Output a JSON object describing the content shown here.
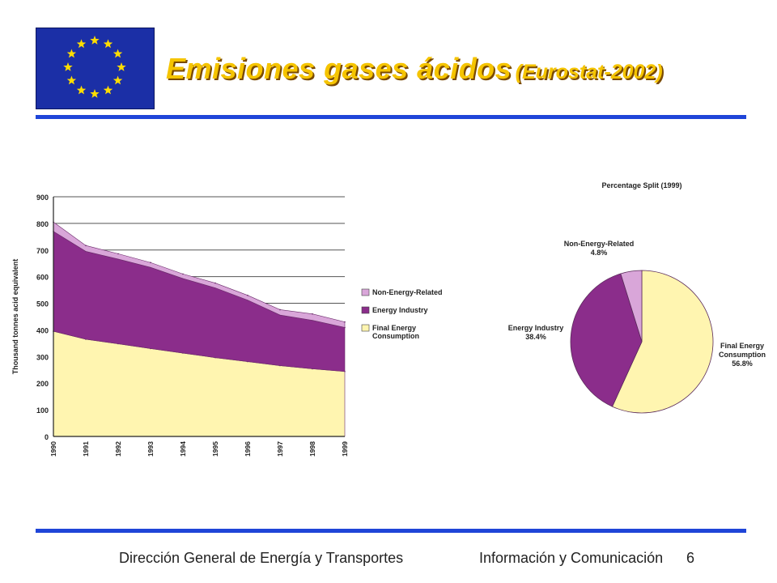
{
  "header": {
    "title_main": "Emisiones gases ácidos",
    "title_sub": "(Eurostat-2002)",
    "flag_icon": "eu-flag-icon",
    "flag_color": "#1b2fa6",
    "star_color": "#ffdd00"
  },
  "footer": {
    "left": "Dirección General de Energía y Transportes",
    "right": "Información y Comunicación",
    "page": "6"
  },
  "chart_data": [
    {
      "type": "area",
      "stacked": true,
      "x": [
        "1990",
        "1991",
        "1992",
        "1993",
        "1994",
        "1995",
        "1996",
        "1997",
        "1998",
        "1999"
      ],
      "ylabel": "Thousand tonnes acid equivalent",
      "ylim": [
        0,
        900
      ],
      "yticks": [
        0,
        100,
        200,
        300,
        400,
        500,
        600,
        700,
        800,
        900
      ],
      "grid": true,
      "legend": "right",
      "series": [
        {
          "name": "Final Energy Consumption",
          "color": "#fff5b0",
          "values": [
            395,
            365,
            348,
            330,
            313,
            296,
            281,
            266,
            254,
            244
          ]
        },
        {
          "name": "Energy Industry",
          "color": "#8b2d8b",
          "values": [
            375,
            330,
            318,
            305,
            280,
            262,
            231,
            190,
            182,
            165
          ]
        },
        {
          "name": "Non-Energy-Related",
          "color": "#d9a6d9",
          "values": [
            35,
            22,
            20,
            18,
            17,
            18,
            18,
            20,
            24,
            21
          ]
        }
      ]
    },
    {
      "type": "pie",
      "title": "Percentage Split (1999)",
      "slices": [
        {
          "label": "Final Energy Consumption",
          "value_label": "56.8%",
          "value": 56.8,
          "color": "#fff5b0"
        },
        {
          "label": "Energy Industry",
          "value_label": "38.4%",
          "value": 38.4,
          "color": "#8b2d8b"
        },
        {
          "label": "Non-Energy-Related",
          "value_label": "4.8%",
          "value": 4.8,
          "color": "#d9a6d9"
        }
      ]
    }
  ]
}
